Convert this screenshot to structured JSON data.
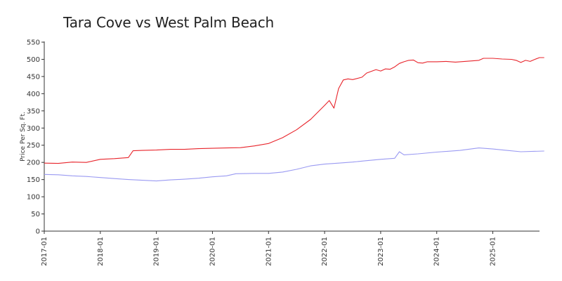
{
  "chart_data": {
    "type": "line",
    "title": "Tara Cove vs West Palm Beach",
    "xlabel": "",
    "ylabel": "Price Per Sq. Ft.",
    "ylim": [
      0,
      550
    ],
    "yticks": [
      "0",
      "50",
      "100",
      "150",
      "200",
      "250",
      "300",
      "350",
      "400",
      "450",
      "500",
      "550"
    ],
    "xticks": [
      "2017-01",
      "2018-01",
      "2019-01",
      "2020-01",
      "2021-01",
      "2022-01",
      "2023-01",
      "2024-01",
      "2025-01"
    ],
    "grid": false,
    "legend": "none",
    "series": [
      {
        "color": "#e8242b",
        "points": [
          [
            "2017-01",
            198
          ],
          [
            "2017-04",
            197
          ],
          [
            "2017-07",
            201
          ],
          [
            "2017-10",
            200
          ],
          [
            "2018-01",
            209
          ],
          [
            "2018-04",
            211
          ],
          [
            "2018-07",
            214
          ],
          [
            "2018-08",
            234
          ],
          [
            "2018-10",
            235
          ],
          [
            "2019-01",
            236
          ],
          [
            "2019-04",
            238
          ],
          [
            "2019-07",
            238
          ],
          [
            "2019-10",
            240
          ],
          [
            "2020-01",
            241
          ],
          [
            "2020-04",
            242
          ],
          [
            "2020-07",
            243
          ],
          [
            "2020-10",
            248
          ],
          [
            "2021-01",
            255
          ],
          [
            "2021-04",
            272
          ],
          [
            "2021-07",
            295
          ],
          [
            "2021-10",
            325
          ],
          [
            "2022-01",
            366
          ],
          [
            "2022-02",
            380
          ],
          [
            "2022-03",
            358
          ],
          [
            "2022-04",
            415
          ],
          [
            "2022-05",
            440
          ],
          [
            "2022-06",
            443
          ],
          [
            "2022-07",
            441
          ],
          [
            "2022-09",
            448
          ],
          [
            "2022-10",
            460
          ],
          [
            "2022-12",
            470
          ],
          [
            "2023-01",
            466
          ],
          [
            "2023-02",
            472
          ],
          [
            "2023-03",
            471
          ],
          [
            "2023-04",
            478
          ],
          [
            "2023-05",
            488
          ],
          [
            "2023-06",
            493
          ],
          [
            "2023-07",
            497
          ],
          [
            "2023-08",
            498
          ],
          [
            "2023-09",
            490
          ],
          [
            "2023-10",
            489
          ],
          [
            "2023-11",
            493
          ],
          [
            "2024-01",
            493
          ],
          [
            "2024-03",
            494
          ],
          [
            "2024-05",
            492
          ],
          [
            "2024-07",
            494
          ],
          [
            "2024-10",
            497
          ],
          [
            "2024-11",
            503
          ],
          [
            "2025-01",
            503
          ],
          [
            "2025-03",
            501
          ],
          [
            "2025-05",
            500
          ],
          [
            "2025-06",
            497
          ],
          [
            "2025-07",
            491
          ],
          [
            "2025-08",
            497
          ],
          [
            "2025-09",
            494
          ],
          [
            "2025-10",
            500
          ],
          [
            "2025-11",
            505
          ],
          [
            "2025-12",
            505
          ]
        ]
      },
      {
        "color": "#9a9af2",
        "points": [
          [
            "2017-01",
            165
          ],
          [
            "2017-04",
            164
          ],
          [
            "2017-07",
            161
          ],
          [
            "2017-10",
            159
          ],
          [
            "2018-01",
            156
          ],
          [
            "2018-04",
            153
          ],
          [
            "2018-07",
            150
          ],
          [
            "2018-10",
            148
          ],
          [
            "2019-01",
            146
          ],
          [
            "2019-04",
            149
          ],
          [
            "2019-07",
            151
          ],
          [
            "2019-10",
            154
          ],
          [
            "2020-01",
            158
          ],
          [
            "2020-04",
            161
          ],
          [
            "2020-06",
            167
          ],
          [
            "2020-10",
            168
          ],
          [
            "2021-01",
            168
          ],
          [
            "2021-04",
            172
          ],
          [
            "2021-07",
            180
          ],
          [
            "2021-10",
            190
          ],
          [
            "2022-01",
            195
          ],
          [
            "2022-04",
            198
          ],
          [
            "2022-07",
            201
          ],
          [
            "2022-10",
            205
          ],
          [
            "2023-01",
            209
          ],
          [
            "2023-04",
            212
          ],
          [
            "2023-05",
            231
          ],
          [
            "2023-06",
            222
          ],
          [
            "2023-09",
            225
          ],
          [
            "2024-01",
            230
          ],
          [
            "2024-06",
            235
          ],
          [
            "2024-10",
            242
          ],
          [
            "2025-01",
            239
          ],
          [
            "2025-04",
            235
          ],
          [
            "2025-07",
            231
          ],
          [
            "2025-12",
            233
          ]
        ]
      }
    ]
  }
}
